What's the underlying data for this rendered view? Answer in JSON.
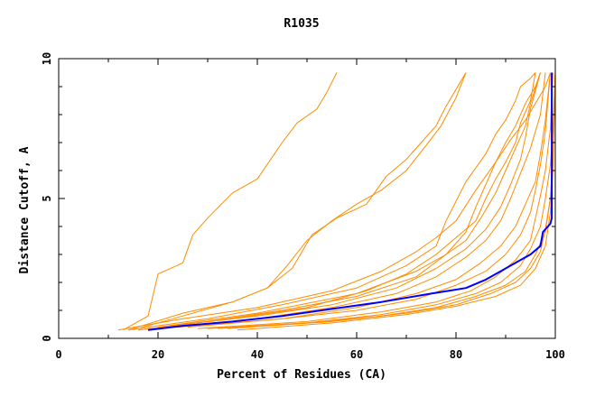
{
  "chart_data": {
    "type": "line",
    "title": "R1035",
    "xlabel": "Percent of Residues (CA)",
    "ylabel": "Distance Cutoff, A",
    "xlim": [
      0,
      100
    ],
    "ylim": [
      0,
      10
    ],
    "xticks": [
      0,
      20,
      40,
      60,
      80,
      100
    ],
    "yticks": [
      0,
      5,
      10
    ],
    "grid": false,
    "legend": "none",
    "colors": {
      "background_series": "#ff8c00",
      "highlight_series": "#0000ff"
    },
    "series": [
      {
        "highlight": false,
        "x": [
          13,
          18,
          20,
          25,
          27,
          30,
          35,
          40,
          45,
          48,
          52,
          54,
          56
        ],
        "y": [
          0.3,
          0.8,
          2.3,
          2.7,
          3.7,
          4.3,
          5.2,
          5.7,
          7.0,
          7.7,
          8.2,
          8.8,
          9.5
        ]
      },
      {
        "highlight": false,
        "x": [
          15,
          25,
          35,
          42,
          46,
          50,
          55,
          60,
          65,
          70,
          74,
          77,
          80,
          82
        ],
        "y": [
          0.3,
          0.8,
          1.3,
          1.8,
          2.6,
          3.5,
          4.2,
          4.8,
          5.3,
          6.0,
          6.9,
          7.6,
          8.6,
          9.5
        ]
      },
      {
        "highlight": false,
        "x": [
          14,
          25,
          35,
          42,
          47,
          51,
          56,
          62,
          66,
          70,
          73,
          76,
          78,
          80,
          82
        ],
        "y": [
          0.3,
          0.9,
          1.3,
          1.8,
          2.5,
          3.7,
          4.3,
          4.8,
          5.8,
          6.4,
          7.0,
          7.6,
          8.3,
          8.9,
          9.5
        ]
      },
      {
        "highlight": false,
        "x": [
          12,
          25,
          40,
          55,
          65,
          72,
          76,
          80,
          84,
          88,
          91,
          94,
          96,
          98,
          99
        ],
        "y": [
          0.3,
          0.7,
          1.1,
          1.7,
          2.4,
          3.1,
          3.6,
          4.2,
          5.3,
          6.3,
          7.1,
          7.8,
          8.4,
          9.0,
          9.5
        ]
      },
      {
        "highlight": false,
        "x": [
          14,
          30,
          45,
          60,
          70,
          76,
          78,
          80,
          82,
          84,
          86,
          88,
          90,
          92,
          93,
          95,
          96
        ],
        "y": [
          0.3,
          0.7,
          1.2,
          1.8,
          2.6,
          3.3,
          4.2,
          4.9,
          5.6,
          6.1,
          6.6,
          7.3,
          7.8,
          8.5,
          9.0,
          9.3,
          9.5
        ]
      },
      {
        "highlight": false,
        "x": [
          16,
          30,
          45,
          60,
          72,
          78,
          82,
          84,
          86,
          88,
          90,
          92,
          94,
          96,
          97
        ],
        "y": [
          0.3,
          0.6,
          1.0,
          1.5,
          2.2,
          3.0,
          3.8,
          4.7,
          5.5,
          6.3,
          7.0,
          7.6,
          8.4,
          9.0,
          9.5
        ]
      },
      {
        "highlight": false,
        "x": [
          16,
          35,
          50,
          62,
          70,
          76,
          80,
          84,
          86,
          88,
          90,
          92,
          93,
          95,
          96
        ],
        "y": [
          0.3,
          0.7,
          1.1,
          1.7,
          2.3,
          3.0,
          3.6,
          4.2,
          5.0,
          5.7,
          6.3,
          7.0,
          7.7,
          8.5,
          9.5
        ]
      },
      {
        "highlight": false,
        "x": [
          20,
          40,
          55,
          68,
          76,
          82,
          86,
          89,
          91,
          93,
          94,
          95,
          97
        ],
        "y": [
          0.4,
          0.8,
          1.2,
          1.8,
          2.5,
          3.2,
          3.9,
          4.7,
          5.5,
          6.4,
          7.2,
          8.2,
          9.5
        ]
      },
      {
        "highlight": false,
        "x": [
          22,
          40,
          55,
          68,
          76,
          82,
          86,
          89,
          91,
          93,
          95,
          97,
          98
        ],
        "y": [
          0.4,
          0.7,
          1.1,
          1.6,
          2.2,
          2.9,
          3.5,
          4.2,
          5.0,
          5.9,
          6.8,
          8.0,
          9.5
        ]
      },
      {
        "highlight": false,
        "x": [
          24,
          45,
          60,
          72,
          80,
          85,
          89,
          92,
          94,
          96,
          97,
          98,
          99
        ],
        "y": [
          0.4,
          0.7,
          1.1,
          1.6,
          2.1,
          2.7,
          3.3,
          4.0,
          4.8,
          5.6,
          6.6,
          7.8,
          9.5
        ]
      },
      {
        "highlight": false,
        "x": [
          26,
          45,
          60,
          72,
          80,
          86,
          90,
          93,
          95,
          96,
          97,
          98,
          99
        ],
        "y": [
          0.4,
          0.7,
          1.0,
          1.4,
          1.9,
          2.4,
          3.0,
          3.7,
          4.5,
          5.3,
          6.2,
          7.4,
          9.5
        ]
      },
      {
        "highlight": false,
        "x": [
          28,
          50,
          65,
          76,
          83,
          88,
          92,
          95,
          96,
          97,
          98,
          99,
          99.5
        ],
        "y": [
          0.35,
          0.6,
          0.95,
          1.3,
          1.7,
          2.2,
          2.8,
          3.5,
          4.3,
          5.1,
          6.0,
          7.5,
          9.5
        ]
      },
      {
        "highlight": false,
        "x": [
          30,
          50,
          65,
          76,
          84,
          89,
          93,
          95,
          97,
          98,
          99,
          99.5,
          100
        ],
        "y": [
          0.35,
          0.55,
          0.85,
          1.2,
          1.6,
          2.0,
          2.6,
          3.2,
          4.0,
          5.0,
          6.2,
          7.5,
          9.5
        ]
      },
      {
        "highlight": false,
        "x": [
          32,
          50,
          65,
          76,
          84,
          90,
          94,
          96,
          98,
          99,
          99.5,
          100
        ],
        "y": [
          0.35,
          0.55,
          0.8,
          1.1,
          1.5,
          1.9,
          2.4,
          3.0,
          3.8,
          5.0,
          6.5,
          9.5
        ]
      },
      {
        "highlight": false,
        "x": [
          34,
          55,
          70,
          80,
          87,
          92,
          95,
          97,
          98,
          99,
          99.5,
          100
        ],
        "y": [
          0.35,
          0.6,
          0.9,
          1.2,
          1.6,
          2.0,
          2.5,
          3.1,
          3.9,
          5.0,
          6.5,
          9.5
        ]
      },
      {
        "highlight": false,
        "x": [
          36,
          55,
          70,
          80,
          88,
          93,
          96,
          98,
          99,
          99.5,
          100
        ],
        "y": [
          0.3,
          0.55,
          0.85,
          1.15,
          1.5,
          1.9,
          2.5,
          3.3,
          4.5,
          6.0,
          9.5
        ]
      },
      {
        "highlight": false,
        "x": [
          20,
          40,
          60,
          72,
          78,
          82,
          85,
          88,
          90,
          92,
          94,
          95,
          97
        ],
        "y": [
          0.4,
          0.9,
          1.6,
          2.4,
          3.0,
          3.5,
          4.3,
          5.2,
          6.0,
          6.8,
          7.6,
          8.4,
          9.5
        ]
      },
      {
        "highlight": true,
        "x": [
          18,
          25,
          35,
          45,
          55,
          65,
          75,
          82,
          86,
          89,
          92,
          95,
          97,
          97.5,
          98,
          99,
          99.3,
          99.3,
          99.3
        ],
        "y": [
          0.3,
          0.45,
          0.6,
          0.8,
          1.05,
          1.3,
          1.6,
          1.8,
          2.1,
          2.4,
          2.7,
          3.0,
          3.3,
          3.8,
          3.9,
          4.1,
          4.3,
          7.0,
          9.5
        ]
      }
    ]
  }
}
